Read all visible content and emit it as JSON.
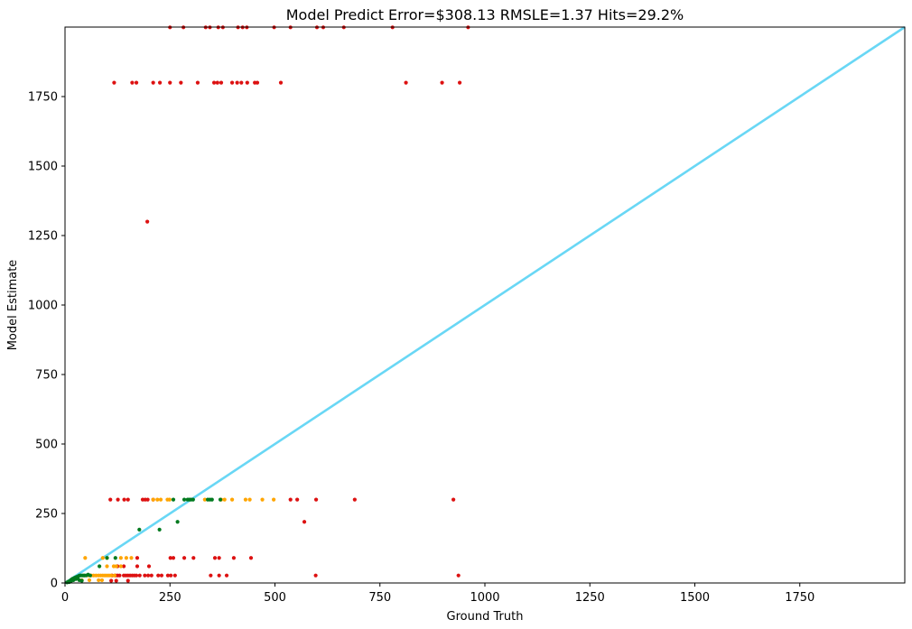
{
  "chart_data": {
    "type": "scatter",
    "title": "Model Predict Error=$308.13 RMSLE=1.37 Hits=29.2%",
    "xlabel": "Ground Truth",
    "ylabel": "Model Estimate",
    "xlim": [
      0,
      2000
    ],
    "ylim": [
      0,
      2000
    ],
    "xticks": [
      0,
      250,
      500,
      750,
      1000,
      1250,
      1500,
      1750
    ],
    "yticks": [
      0,
      250,
      500,
      750,
      1000,
      1250,
      1500,
      1750
    ],
    "grid": false,
    "colors": {
      "red": "#dd1111",
      "orange": "#ffa500",
      "green": "#007a1f",
      "diagonal": "#69d7f5"
    },
    "diagonal_line": {
      "x": [
        0,
        2000
      ],
      "y": [
        0,
        2000
      ]
    },
    "series": [
      {
        "color": "red",
        "points": [
          [
            250,
            1999
          ],
          [
            282,
            1999
          ],
          [
            335,
            1999
          ],
          [
            345,
            1999
          ],
          [
            365,
            1999
          ],
          [
            376,
            1999
          ],
          [
            412,
            1999
          ],
          [
            423,
            1999
          ],
          [
            433,
            1999
          ],
          [
            498,
            1999
          ],
          [
            537,
            1999
          ],
          [
            600,
            1999
          ],
          [
            615,
            1999
          ],
          [
            664,
            1999
          ],
          [
            780,
            1999
          ],
          [
            960,
            1999
          ],
          [
            117,
            1800
          ],
          [
            160,
            1800
          ],
          [
            170,
            1800
          ],
          [
            210,
            1800
          ],
          [
            226,
            1800
          ],
          [
            250,
            1800
          ],
          [
            276,
            1800
          ],
          [
            316,
            1800
          ],
          [
            355,
            1800
          ],
          [
            363,
            1800
          ],
          [
            372,
            1800
          ],
          [
            398,
            1800
          ],
          [
            410,
            1800
          ],
          [
            420,
            1800
          ],
          [
            434,
            1800
          ],
          [
            452,
            1800
          ],
          [
            458,
            1800
          ],
          [
            514,
            1800
          ],
          [
            812,
            1800
          ],
          [
            898,
            1800
          ],
          [
            940,
            1800
          ],
          [
            196,
            1300
          ],
          [
            108,
            300
          ],
          [
            126,
            300
          ],
          [
            141,
            300
          ],
          [
            150,
            300
          ],
          [
            185,
            300
          ],
          [
            191,
            300
          ],
          [
            197,
            300
          ],
          [
            210,
            300
          ],
          [
            537,
            300
          ],
          [
            553,
            300
          ],
          [
            598,
            300
          ],
          [
            690,
            300
          ],
          [
            925,
            300
          ],
          [
            570,
            220
          ],
          [
            172,
            90
          ],
          [
            251,
            90
          ],
          [
            258,
            90
          ],
          [
            284,
            90
          ],
          [
            306,
            90
          ],
          [
            357,
            90
          ],
          [
            367,
            90
          ],
          [
            402,
            90
          ],
          [
            443,
            90
          ],
          [
            125,
            60
          ],
          [
            140,
            60
          ],
          [
            172,
            60
          ],
          [
            200,
            60
          ],
          [
            112,
            27
          ],
          [
            120,
            27
          ],
          [
            125,
            27
          ],
          [
            130,
            27
          ],
          [
            140,
            27
          ],
          [
            145,
            27
          ],
          [
            150,
            27
          ],
          [
            155,
            27
          ],
          [
            160,
            27
          ],
          [
            165,
            27
          ],
          [
            170,
            27
          ],
          [
            178,
            27
          ],
          [
            190,
            27
          ],
          [
            198,
            27
          ],
          [
            206,
            27
          ],
          [
            222,
            27
          ],
          [
            230,
            27
          ],
          [
            245,
            27
          ],
          [
            252,
            27
          ],
          [
            262,
            27
          ],
          [
            347,
            27
          ],
          [
            367,
            27
          ],
          [
            385,
            27
          ],
          [
            597,
            27
          ],
          [
            937,
            27
          ],
          [
            110,
            8
          ],
          [
            122,
            8
          ],
          [
            150,
            8
          ]
        ]
      },
      {
        "color": "orange",
        "points": [
          [
            210,
            300
          ],
          [
            220,
            300
          ],
          [
            228,
            300
          ],
          [
            244,
            300
          ],
          [
            249,
            300
          ],
          [
            333,
            300
          ],
          [
            372,
            300
          ],
          [
            380,
            300
          ],
          [
            398,
            300
          ],
          [
            430,
            300
          ],
          [
            440,
            300
          ],
          [
            470,
            300
          ],
          [
            497,
            300
          ],
          [
            48,
            90
          ],
          [
            90,
            90
          ],
          [
            100,
            90
          ],
          [
            133,
            90
          ],
          [
            146,
            90
          ],
          [
            158,
            90
          ],
          [
            100,
            60
          ],
          [
            116,
            60
          ],
          [
            122,
            60
          ],
          [
            133,
            60
          ],
          [
            45,
            27
          ],
          [
            55,
            27
          ],
          [
            62,
            27
          ],
          [
            68,
            27
          ],
          [
            74,
            27
          ],
          [
            80,
            27
          ],
          [
            85,
            27
          ],
          [
            90,
            27
          ],
          [
            95,
            27
          ],
          [
            100,
            27
          ],
          [
            105,
            27
          ],
          [
            110,
            27
          ],
          [
            118,
            27
          ],
          [
            40,
            10
          ],
          [
            58,
            10
          ],
          [
            80,
            10
          ],
          [
            88,
            10
          ]
        ]
      },
      {
        "color": "green",
        "points": [
          [
            258,
            300
          ],
          [
            284,
            300
          ],
          [
            292,
            300
          ],
          [
            296,
            300
          ],
          [
            300,
            300
          ],
          [
            305,
            300
          ],
          [
            340,
            300
          ],
          [
            345,
            300
          ],
          [
            350,
            300
          ],
          [
            370,
            300
          ],
          [
            268,
            220
          ],
          [
            177,
            192
          ],
          [
            225,
            192
          ],
          [
            82,
            60
          ],
          [
            100,
            90
          ],
          [
            120,
            90
          ],
          [
            5,
            2
          ],
          [
            8,
            5
          ],
          [
            12,
            8
          ],
          [
            15,
            12
          ],
          [
            18,
            15
          ],
          [
            22,
            18
          ],
          [
            25,
            20
          ],
          [
            28,
            22
          ],
          [
            32,
            25
          ],
          [
            35,
            27
          ],
          [
            38,
            27
          ],
          [
            42,
            27
          ],
          [
            46,
            27
          ],
          [
            50,
            27
          ],
          [
            55,
            30
          ],
          [
            60,
            27
          ],
          [
            10,
            3
          ],
          [
            14,
            6
          ],
          [
            20,
            10
          ],
          [
            26,
            14
          ],
          [
            30,
            18
          ],
          [
            34,
            10
          ],
          [
            40,
            8
          ]
        ]
      }
    ]
  }
}
